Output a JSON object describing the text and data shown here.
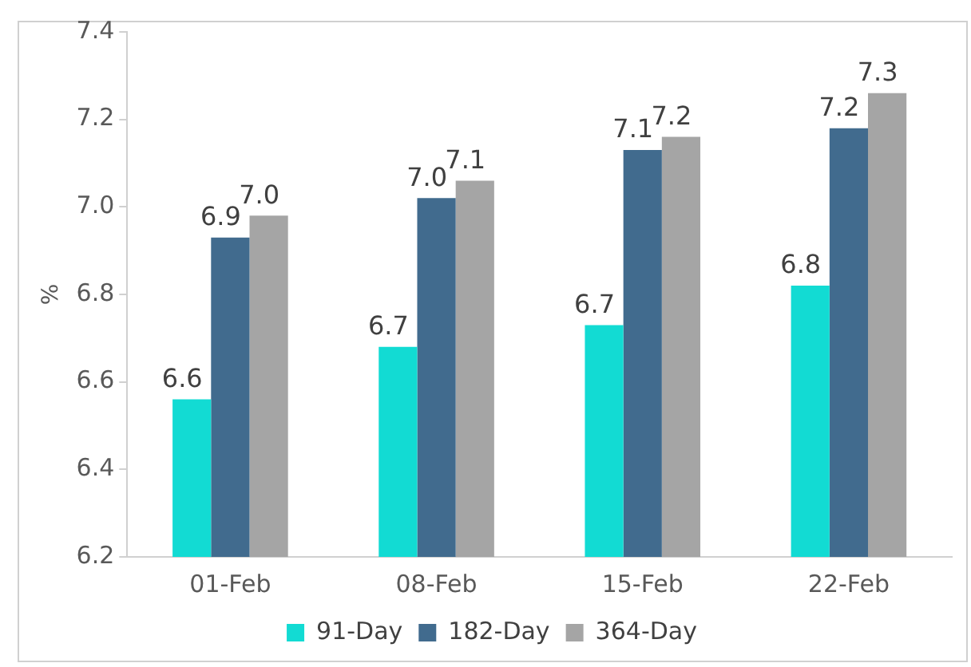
{
  "chart_data": {
    "type": "bar",
    "ylabel": "%",
    "categories": [
      "01-Feb",
      "08-Feb",
      "15-Feb",
      "22-Feb"
    ],
    "series": [
      {
        "name": "91-Day",
        "color": "#12dbd3",
        "values": [
          6.56,
          6.68,
          6.73,
          6.82
        ],
        "value_labels": [
          "6.6",
          "6.7",
          "6.7",
          "6.8"
        ]
      },
      {
        "name": "182-Day",
        "color": "#416b8e",
        "values": [
          6.93,
          7.02,
          7.13,
          7.18
        ],
        "value_labels": [
          "6.9",
          "7.0",
          "7.1",
          "7.2"
        ]
      },
      {
        "name": "364-Day",
        "color": "#a5a5a5",
        "values": [
          6.98,
          7.06,
          7.16,
          7.26
        ],
        "value_labels": [
          "7.0",
          "7.1",
          "7.2",
          "7.3"
        ]
      }
    ],
    "ylim": [
      6.2,
      7.4
    ],
    "yticks": [
      {
        "value": 6.2,
        "label": "6.2"
      },
      {
        "value": 6.4,
        "label": "6.4"
      },
      {
        "value": 6.6,
        "label": "6.6"
      },
      {
        "value": 6.8,
        "label": "6.8"
      },
      {
        "value": 7.0,
        "label": "7.0"
      },
      {
        "value": 7.2,
        "label": "7.2"
      },
      {
        "value": 7.4,
        "label": "7.4"
      }
    ],
    "grid": false,
    "legend": "bottom"
  }
}
